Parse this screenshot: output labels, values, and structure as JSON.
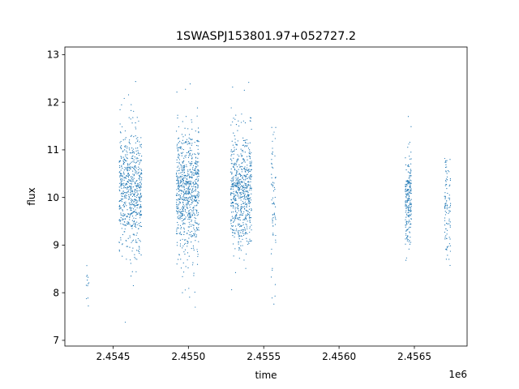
{
  "chart_data": {
    "type": "scatter",
    "title": "1SWASPJ153801.97+052727.2",
    "xlabel": "time",
    "ylabel": "flux",
    "x_offset_label": "1e6",
    "xlim": [
      2.45418,
      2.45685
    ],
    "ylim": [
      6.88,
      13.16
    ],
    "x_ticks": [
      2.4545,
      2.455,
      2.4555,
      2.456,
      2.4565
    ],
    "x_tick_labels": [
      "2.4545",
      "2.4550",
      "2.4555",
      "2.4560",
      "2.4565"
    ],
    "y_ticks": [
      7,
      8,
      9,
      10,
      11,
      12,
      13
    ],
    "y_tick_labels": [
      "7",
      "8",
      "9",
      "10",
      "11",
      "12",
      "13"
    ],
    "grid": false,
    "legend": "none",
    "marker_color": "#1f77b4",
    "series": [
      {
        "clusters": [
          {
            "x_start": 2.45432,
            "x_end": 2.45434,
            "y_mean": 8.2,
            "y_sd": 0.3,
            "n": 12
          },
          {
            "x_start": 2.45454,
            "x_end": 2.45469,
            "y_mean": 10.15,
            "y_sd": 0.6,
            "n": 650
          },
          {
            "x_start": 2.45492,
            "x_end": 2.45507,
            "y_mean": 10.1,
            "y_sd": 0.65,
            "n": 750
          },
          {
            "x_start": 2.45528,
            "x_end": 2.45542,
            "y_mean": 10.1,
            "y_sd": 0.6,
            "n": 650
          },
          {
            "x_start": 2.45555,
            "x_end": 2.45558,
            "y_mean": 9.9,
            "y_sd": 0.8,
            "n": 70
          },
          {
            "x_start": 2.45644,
            "x_end": 2.45648,
            "y_mean": 10.0,
            "y_sd": 0.45,
            "n": 220
          },
          {
            "x_start": 2.4567,
            "x_end": 2.45674,
            "y_mean": 9.8,
            "y_sd": 0.55,
            "n": 100
          }
        ]
      }
    ]
  }
}
